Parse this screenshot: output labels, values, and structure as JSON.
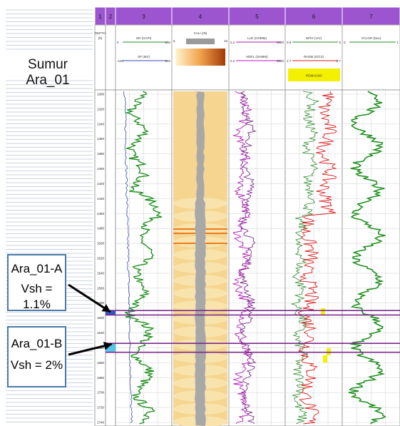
{
  "well_name": "Sumur Ara_01",
  "columns": [
    {
      "number": "1",
      "header": "DEPTH (ft)"
    },
    {
      "number": "2",
      "header": ""
    },
    {
      "number": "3",
      "header": "GR (GAPI) / SP (MV)"
    },
    {
      "number": "4",
      "header": "CALI (IN)"
    },
    {
      "number": "5",
      "header": "LLD (OHMM) / MSFL (OHMM)"
    },
    {
      "number": "6",
      "header": "NPHI (V/V) / RHOB (G/C3)"
    },
    {
      "number": "7",
      "header": "VCLGR (Dec)"
    }
  ],
  "curve_headers": {
    "gr": {
      "name": "GR (GAPI)",
      "min": "0",
      "max": "200"
    },
    "sp": {
      "name": "SP (MV)",
      "min": "-100",
      "max": "100"
    },
    "cali": {
      "name": "CALI (IN)",
      "min": "6",
      "max": "16"
    },
    "lld": {
      "name": "LLD (OHMM)",
      "min": "0.2",
      "max": "2000"
    },
    "msfl": {
      "name": "MSFL (OHMM)",
      "min": "0.2",
      "max": "2000"
    },
    "nphi": {
      "name": "NPHI (V/V)",
      "min": "0.6",
      "max": "0"
    },
    "rhob": {
      "name": "RHOB (G/C3)",
      "min": "1.7",
      "max": "2.7"
    },
    "vclgr": {
      "name": "VCLGR (Dec)",
      "min": "0",
      "max": "1"
    },
    "badge": "ROMAGNC"
  },
  "depth_ticks": [
    "1300",
    "1320",
    "1340",
    "1360",
    "1380",
    "1400",
    "1420",
    "1440",
    "1460",
    "1480",
    "1500",
    "1520",
    "1540",
    "1560",
    "1580",
    "1600",
    "1620",
    "1640",
    "1660",
    "1680",
    "1700",
    "1720",
    "1740"
  ],
  "zones": [
    {
      "name": "Ara_01-A",
      "vsh": "Vsh = 1.1%",
      "top_depth": 1590,
      "base_depth": 1596
    },
    {
      "name": "Ara_01-B",
      "vsh": "Vsh = 2%",
      "top_depth": 1634,
      "base_depth": 1646
    }
  ],
  "colors": {
    "header_band": "#9c55cf",
    "gr_curve": "#1f8f1f",
    "sp_curve": "#3a4bb5",
    "cali_fill": "#f5d58f",
    "cali_core": "#a8a8a8",
    "resistivity": "#b21ab8",
    "nphi": "#2e8b2e",
    "rhob": "#d81e1e",
    "zone_line": "#7b2a8c",
    "badge": "#f4f100"
  }
}
